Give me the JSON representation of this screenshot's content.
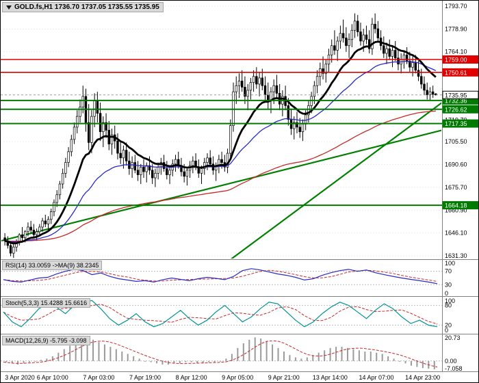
{
  "header": {
    "symbol_line": "GOLD.fs,H1 1736.70 1737.05 1735.55 1735.95"
  },
  "colors": {
    "background": "#ffffff",
    "foreground": "#000000",
    "bull_body": "#ffffff",
    "bear_body": "#000000",
    "ma_black": "#000000",
    "ma_blue": "#2828c8",
    "ma_red": "#c82828",
    "resistance": "#e00000",
    "support": "#007a00",
    "trendline": "#008000",
    "grid": "#ededed",
    "panel_level": "#b9b9b9",
    "separator": "#808080",
    "rsi_line": "#2828c8",
    "rsi_ma": "#c82828",
    "stoch_k": "#009393",
    "stoch_d": "#c82828",
    "macd_hist": "#9a9a9a",
    "macd_signal": "#c82828",
    "current_price_line": "#999999"
  },
  "time_axis": [
    "3 Apr 2020",
    "6 Apr 10:00",
    "7 Apr 03:00",
    "7 Apr 19:00",
    "8 Apr 12:00",
    "9 Apr 05:00",
    "9 Apr 21:00",
    "13 Apr 14:00",
    "14 Apr 07:00",
    "14 Apr 23:00"
  ],
  "chart_data": {
    "type": "candlestick",
    "title": "GOLD.fs H1",
    "price_axis": {
      "min": 1631.3,
      "max": 1793.7,
      "ticks": [
        "1793.70",
        "1778.90",
        "1764.10",
        "1719.70",
        "1705.50",
        "1690.60",
        "1675.70",
        "1660.90",
        "1646.10",
        "1631.30"
      ]
    },
    "badges": [
      {
        "label": "1759.00",
        "price": 1759.0,
        "type": "resistance"
      },
      {
        "label": "1750.61",
        "price": 1750.61,
        "type": "resistance"
      },
      {
        "label": "1732.36",
        "price": 1732.36,
        "type": "support"
      },
      {
        "label": "1726.62",
        "price": 1726.62,
        "type": "support"
      },
      {
        "label": "1717.35",
        "price": 1717.35,
        "type": "support"
      },
      {
        "label": "1664.18",
        "price": 1664.18,
        "type": "support"
      },
      {
        "label": "1735.95",
        "price": 1735.95,
        "type": "current"
      }
    ],
    "hlines": [
      {
        "price": 1759.0,
        "color": "#e00000",
        "width": 1.6
      },
      {
        "price": 1750.61,
        "color": "#e00000",
        "width": 1.6
      },
      {
        "price": 1732.36,
        "color": "#007a00",
        "width": 2
      },
      {
        "price": 1726.62,
        "color": "#007a00",
        "width": 2
      },
      {
        "price": 1717.35,
        "color": "#007a00",
        "width": 2
      },
      {
        "price": 1664.18,
        "color": "#007a00",
        "width": 2
      }
    ],
    "current_price": 1735.95,
    "trendlines": [
      {
        "x0": 0.0,
        "p0": 1641,
        "x1": 1.0,
        "p1": 1713
      },
      {
        "x0": 0.512,
        "p0": 1627,
        "x1": 1.0,
        "p1": 1731
      }
    ],
    "candles": [
      [
        1643,
        1646,
        1638,
        1641
      ],
      [
        1641,
        1644,
        1636,
        1638
      ],
      [
        1638,
        1640,
        1631,
        1633
      ],
      [
        1633,
        1639,
        1630,
        1637
      ],
      [
        1637,
        1642,
        1634,
        1640
      ],
      [
        1640,
        1646,
        1638,
        1645
      ],
      [
        1645,
        1650,
        1641,
        1643
      ],
      [
        1643,
        1648,
        1640,
        1647
      ],
      [
        1647,
        1653,
        1644,
        1650
      ],
      [
        1650,
        1654,
        1646,
        1648
      ],
      [
        1648,
        1652,
        1643,
        1645
      ],
      [
        1645,
        1649,
        1641,
        1647
      ],
      [
        1647,
        1652,
        1645,
        1650
      ],
      [
        1650,
        1656,
        1647,
        1654
      ],
      [
        1654,
        1658,
        1650,
        1652
      ],
      [
        1652,
        1657,
        1648,
        1655
      ],
      [
        1655,
        1662,
        1652,
        1660
      ],
      [
        1660,
        1668,
        1657,
        1666
      ],
      [
        1666,
        1674,
        1663,
        1671
      ],
      [
        1671,
        1680,
        1668,
        1678
      ],
      [
        1678,
        1688,
        1675,
        1685
      ],
      [
        1685,
        1695,
        1682,
        1692
      ],
      [
        1692,
        1702,
        1689,
        1699
      ],
      [
        1699,
        1710,
        1696,
        1707
      ],
      [
        1707,
        1718,
        1704,
        1715
      ],
      [
        1715,
        1726,
        1711,
        1722
      ],
      [
        1722,
        1733,
        1718,
        1728
      ],
      [
        1728,
        1742,
        1724,
        1735
      ],
      [
        1735,
        1740,
        1712,
        1718
      ],
      [
        1718,
        1730,
        1700,
        1705
      ],
      [
        1705,
        1726,
        1698,
        1722
      ],
      [
        1722,
        1737,
        1715,
        1732
      ],
      [
        1732,
        1738,
        1718,
        1724
      ],
      [
        1724,
        1731,
        1706,
        1712
      ],
      [
        1712,
        1722,
        1702,
        1718
      ],
      [
        1718,
        1724,
        1708,
        1713
      ],
      [
        1713,
        1719,
        1700,
        1704
      ],
      [
        1704,
        1714,
        1697,
        1710
      ],
      [
        1710,
        1716,
        1701,
        1706
      ],
      [
        1706,
        1711,
        1694,
        1698
      ],
      [
        1698,
        1706,
        1691,
        1695
      ],
      [
        1695,
        1703,
        1688,
        1700
      ],
      [
        1700,
        1705,
        1690,
        1693
      ],
      [
        1693,
        1699,
        1684,
        1688
      ],
      [
        1688,
        1696,
        1682,
        1692
      ],
      [
        1692,
        1697,
        1685,
        1687
      ],
      [
        1687,
        1693,
        1680,
        1684
      ],
      [
        1684,
        1691,
        1678,
        1689
      ],
      [
        1689,
        1694,
        1682,
        1686
      ],
      [
        1686,
        1692,
        1679,
        1690
      ],
      [
        1690,
        1696,
        1684,
        1687
      ],
      [
        1687,
        1691,
        1678,
        1682
      ],
      [
        1682,
        1688,
        1676,
        1685
      ],
      [
        1685,
        1692,
        1681,
        1689
      ],
      [
        1689,
        1695,
        1684,
        1692
      ],
      [
        1692,
        1697,
        1686,
        1688
      ],
      [
        1688,
        1693,
        1681,
        1684
      ],
      [
        1684,
        1690,
        1678,
        1687
      ],
      [
        1687,
        1694,
        1683,
        1691
      ],
      [
        1691,
        1697,
        1686,
        1694
      ],
      [
        1694,
        1699,
        1688,
        1690
      ],
      [
        1690,
        1695,
        1683,
        1686
      ],
      [
        1686,
        1691,
        1679,
        1683
      ],
      [
        1683,
        1689,
        1677,
        1687
      ],
      [
        1687,
        1693,
        1682,
        1690
      ],
      [
        1690,
        1696,
        1685,
        1693
      ],
      [
        1693,
        1698,
        1687,
        1689
      ],
      [
        1689,
        1694,
        1682,
        1685
      ],
      [
        1685,
        1690,
        1678,
        1688
      ],
      [
        1688,
        1695,
        1684,
        1692
      ],
      [
        1692,
        1698,
        1687,
        1695
      ],
      [
        1695,
        1700,
        1689,
        1691
      ],
      [
        1691,
        1696,
        1684,
        1687
      ],
      [
        1687,
        1692,
        1680,
        1690
      ],
      [
        1690,
        1697,
        1685,
        1694
      ],
      [
        1694,
        1699,
        1688,
        1692
      ],
      [
        1692,
        1697,
        1686,
        1689
      ],
      [
        1689,
        1701,
        1685,
        1698
      ],
      [
        1698,
        1720,
        1695,
        1716
      ],
      [
        1716,
        1744,
        1712,
        1738
      ],
      [
        1738,
        1748,
        1730,
        1742
      ],
      [
        1742,
        1750,
        1734,
        1745
      ],
      [
        1745,
        1752,
        1738,
        1741
      ],
      [
        1741,
        1748,
        1730,
        1735
      ],
      [
        1735,
        1743,
        1726,
        1739
      ],
      [
        1739,
        1747,
        1733,
        1744
      ],
      [
        1744,
        1752,
        1738,
        1748
      ],
      [
        1748,
        1754,
        1740,
        1743
      ],
      [
        1743,
        1751,
        1735,
        1747
      ],
      [
        1747,
        1753,
        1739,
        1742
      ],
      [
        1742,
        1748,
        1731,
        1736
      ],
      [
        1736,
        1744,
        1727,
        1732
      ],
      [
        1732,
        1741,
        1724,
        1738
      ],
      [
        1738,
        1746,
        1730,
        1742
      ],
      [
        1742,
        1749,
        1734,
        1737
      ],
      [
        1737,
        1743,
        1726,
        1730
      ],
      [
        1730,
        1739,
        1722,
        1735
      ],
      [
        1735,
        1742,
        1726,
        1729
      ],
      [
        1729,
        1734,
        1716,
        1720
      ],
      [
        1720,
        1727,
        1710,
        1714
      ],
      [
        1714,
        1722,
        1707,
        1718
      ],
      [
        1718,
        1725,
        1711,
        1715
      ],
      [
        1715,
        1721,
        1708,
        1712
      ],
      [
        1712,
        1720,
        1706,
        1717
      ],
      [
        1717,
        1726,
        1713,
        1723
      ],
      [
        1723,
        1732,
        1718,
        1729
      ],
      [
        1729,
        1738,
        1724,
        1735
      ],
      [
        1735,
        1745,
        1730,
        1742
      ],
      [
        1742,
        1752,
        1737,
        1748
      ],
      [
        1748,
        1757,
        1742,
        1753
      ],
      [
        1753,
        1761,
        1746,
        1750
      ],
      [
        1750,
        1759,
        1744,
        1756
      ],
      [
        1756,
        1766,
        1751,
        1762
      ],
      [
        1762,
        1772,
        1757,
        1768
      ],
      [
        1768,
        1778,
        1762,
        1765
      ],
      [
        1765,
        1774,
        1758,
        1771
      ],
      [
        1771,
        1781,
        1766,
        1776
      ],
      [
        1776,
        1785,
        1770,
        1773
      ],
      [
        1773,
        1780,
        1764,
        1768
      ],
      [
        1768,
        1776,
        1760,
        1772
      ],
      [
        1772,
        1782,
        1767,
        1778
      ],
      [
        1778,
        1789,
        1773,
        1784
      ],
      [
        1784,
        1788,
        1774,
        1777
      ],
      [
        1777,
        1783,
        1768,
        1771
      ],
      [
        1771,
        1779,
        1764,
        1775
      ],
      [
        1775,
        1781,
        1769,
        1772
      ],
      [
        1772,
        1778,
        1763,
        1766
      ],
      [
        1766,
        1786,
        1762,
        1782
      ],
      [
        1782,
        1789,
        1776,
        1779
      ],
      [
        1779,
        1784,
        1770,
        1773
      ],
      [
        1773,
        1778,
        1765,
        1768
      ],
      [
        1768,
        1774,
        1760,
        1763
      ],
      [
        1763,
        1770,
        1756,
        1766
      ],
      [
        1766,
        1772,
        1759,
        1761
      ],
      [
        1761,
        1768,
        1754,
        1765
      ],
      [
        1765,
        1771,
        1758,
        1760
      ],
      [
        1760,
        1766,
        1752,
        1756
      ],
      [
        1756,
        1763,
        1750,
        1759
      ],
      [
        1759,
        1765,
        1753,
        1762
      ],
      [
        1762,
        1767,
        1756,
        1758
      ],
      [
        1758,
        1764,
        1751,
        1754
      ],
      [
        1754,
        1761,
        1748,
        1757
      ],
      [
        1757,
        1762,
        1750,
        1752
      ],
      [
        1752,
        1758,
        1745,
        1748
      ],
      [
        1748,
        1753,
        1740,
        1743
      ],
      [
        1743,
        1748,
        1736,
        1739
      ],
      [
        1739,
        1744,
        1733,
        1736
      ],
      [
        1736,
        1741,
        1732,
        1738
      ],
      [
        1738,
        1742,
        1734,
        1736
      ],
      [
        1736.7,
        1737.05,
        1735.55,
        1735.95
      ]
    ],
    "indicators": {
      "rsi": {
        "label": "RSI(14) 33.0059 ->MA(9) 38.2345",
        "range": [
          0,
          100
        ],
        "levels": [
          100,
          70,
          30,
          0
        ],
        "dashed_levels": [
          70,
          30
        ],
        "values": [
          45,
          40,
          38,
          44,
          50,
          52,
          62,
          70,
          76,
          72,
          60,
          65,
          55,
          48,
          44,
          40,
          42,
          38,
          45,
          50,
          46,
          42,
          48,
          52,
          49,
          45,
          55,
          72,
          78,
          74,
          68,
          62,
          58,
          52,
          44,
          48,
          58,
          66,
          72,
          76,
          70,
          74,
          66,
          60,
          55,
          50,
          46,
          42,
          38,
          33
        ]
      },
      "stoch": {
        "label": "Stoch(5,3,3) 15.4288 15.6616",
        "range": [
          0,
          100
        ],
        "levels": [
          100,
          80,
          20,
          0
        ],
        "dashed_levels": [
          80,
          20
        ],
        "values": [
          60,
          30,
          15,
          40,
          70,
          85,
          75,
          55,
          80,
          90,
          95,
          70,
          40,
          20,
          35,
          55,
          30,
          15,
          25,
          45,
          65,
          40,
          20,
          35,
          60,
          80,
          55,
          30,
          45,
          70,
          90,
          85,
          60,
          35,
          15,
          30,
          55,
          75,
          90,
          80,
          60,
          40,
          65,
          85,
          70,
          45,
          25,
          35,
          20,
          15
        ]
      },
      "macd": {
        "label": "MACD(12,26,9) -5.795 -3.098",
        "range": [
          -7.058,
          20.73
        ],
        "axis_labels": [
          "20.73",
          "0.00",
          "-7.058"
        ],
        "values": [
          -1,
          -2,
          -3,
          -2,
          -1,
          0,
          1,
          2,
          4,
          7,
          10,
          13,
          16,
          18,
          19,
          18,
          16,
          14,
          12,
          10,
          8,
          6,
          4,
          2,
          0,
          -1,
          -2,
          -3,
          -3,
          -2,
          -2,
          -1,
          -1,
          -2,
          -2,
          -1,
          -1,
          0,
          2,
          6,
          11,
          15,
          18,
          20,
          19,
          17,
          14,
          11,
          8,
          5,
          3,
          2,
          3,
          5,
          7,
          9,
          11,
          12,
          12,
          11,
          10,
          9,
          8,
          8,
          7,
          6,
          4,
          2,
          0,
          -2,
          -4,
          -5,
          -6,
          -6.5,
          -7
        ]
      }
    }
  }
}
